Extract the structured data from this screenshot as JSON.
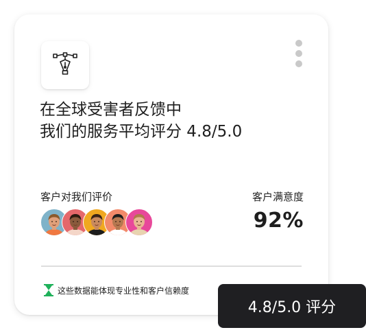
{
  "card": {
    "logo_icon": "pen-tool-icon",
    "more_icon": "more-vertical-icon",
    "headline": {
      "line1": "在全球受害者反馈中",
      "line2": "我们的服务平均评分 4.8/5.0"
    },
    "reviews": {
      "label": "客户对我们评价",
      "avatars": [
        {
          "name": "avatar-1",
          "bg": "#7fb3c9",
          "skin": "#e0a07a",
          "hair": "#8b5a2b",
          "shirt": "#f07840"
        },
        {
          "name": "avatar-2",
          "bg": "#e5686b",
          "skin": "#8a5a3c",
          "hair": "#2d1b10",
          "shirt": "#f4d6c8"
        },
        {
          "name": "avatar-3",
          "bg": "#f0a820",
          "skin": "#c98a5e",
          "hair": "#3b2416",
          "shirt": "#1d1d1d"
        },
        {
          "name": "avatar-4",
          "bg": "#f28a6a",
          "skin": "#b57850",
          "hair": "#1d1d1d",
          "shirt": "#ffffff"
        },
        {
          "name": "avatar-5",
          "bg": "#e8489a",
          "skin": "#e9b594",
          "hair": "#b07a4a",
          "shirt": "#e8d4b0"
        }
      ]
    },
    "satisfaction": {
      "label": "客户满意度",
      "value": "92%"
    },
    "footer": {
      "icon": "hourglass-icon",
      "text": "这些数据能体现专业性和客户信赖度"
    }
  },
  "badge": {
    "text": "4.8/5.0 评分"
  },
  "colors": {
    "badge_bg": "#1f1f22",
    "hourglass": "#1fb15a",
    "dots": "#c9c9c9"
  }
}
